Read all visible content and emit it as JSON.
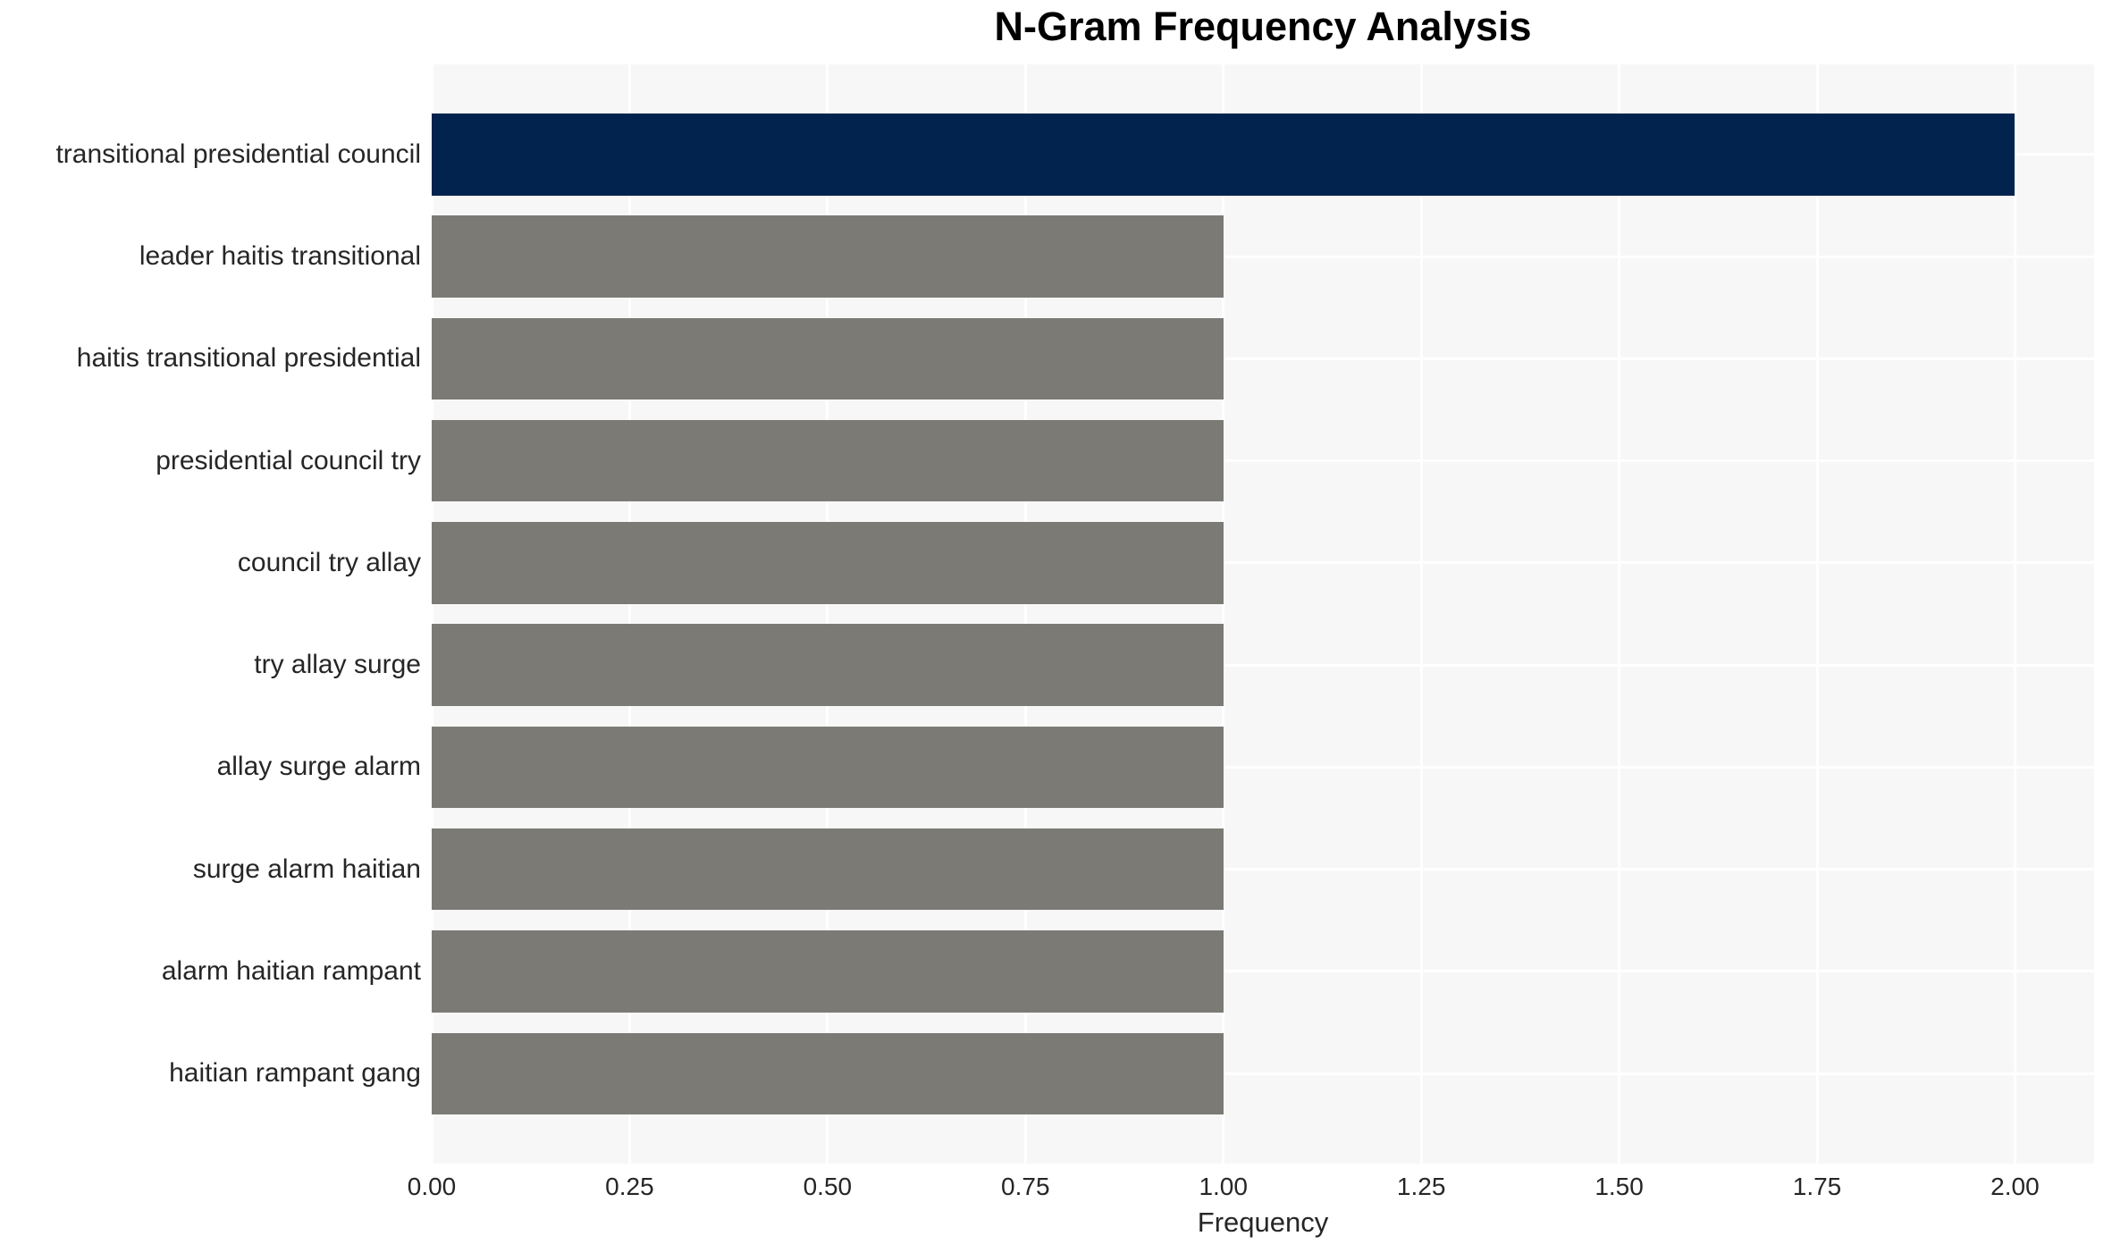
{
  "chart_data": {
    "type": "bar",
    "orientation": "horizontal",
    "title": "N-Gram Frequency Analysis",
    "xlabel": "Frequency",
    "ylabel": "",
    "categories": [
      "transitional presidential council",
      "leader haitis transitional",
      "haitis transitional presidential",
      "presidential council try",
      "council try allay",
      "try allay surge",
      "allay surge alarm",
      "surge alarm haitian",
      "alarm haitian rampant",
      "haitian rampant gang"
    ],
    "values": [
      2,
      1,
      1,
      1,
      1,
      1,
      1,
      1,
      1,
      1
    ],
    "bar_colors": [
      "#02234e",
      "#7b7a75",
      "#7b7a75",
      "#7b7a75",
      "#7b7a75",
      "#7b7a75",
      "#7b7a75",
      "#7b7a75",
      "#7b7a75",
      "#7b7a75"
    ],
    "xlim": [
      0,
      2.1
    ],
    "xticks": {
      "values": [
        0,
        0.25,
        0.5,
        0.75,
        1,
        1.25,
        1.5,
        1.75,
        2
      ],
      "labels": [
        "0.00",
        "0.25",
        "0.50",
        "0.75",
        "1.00",
        "1.25",
        "1.50",
        "1.75",
        "2.00"
      ]
    },
    "grid": true,
    "legend": false,
    "colors": {
      "plot_background": "#f7f7f7",
      "grid_line": "#ffffff",
      "title_text": "#000000",
      "axis_text": "#262626",
      "highlight_bar": "#02234e",
      "default_bar": "#7b7a75"
    }
  }
}
